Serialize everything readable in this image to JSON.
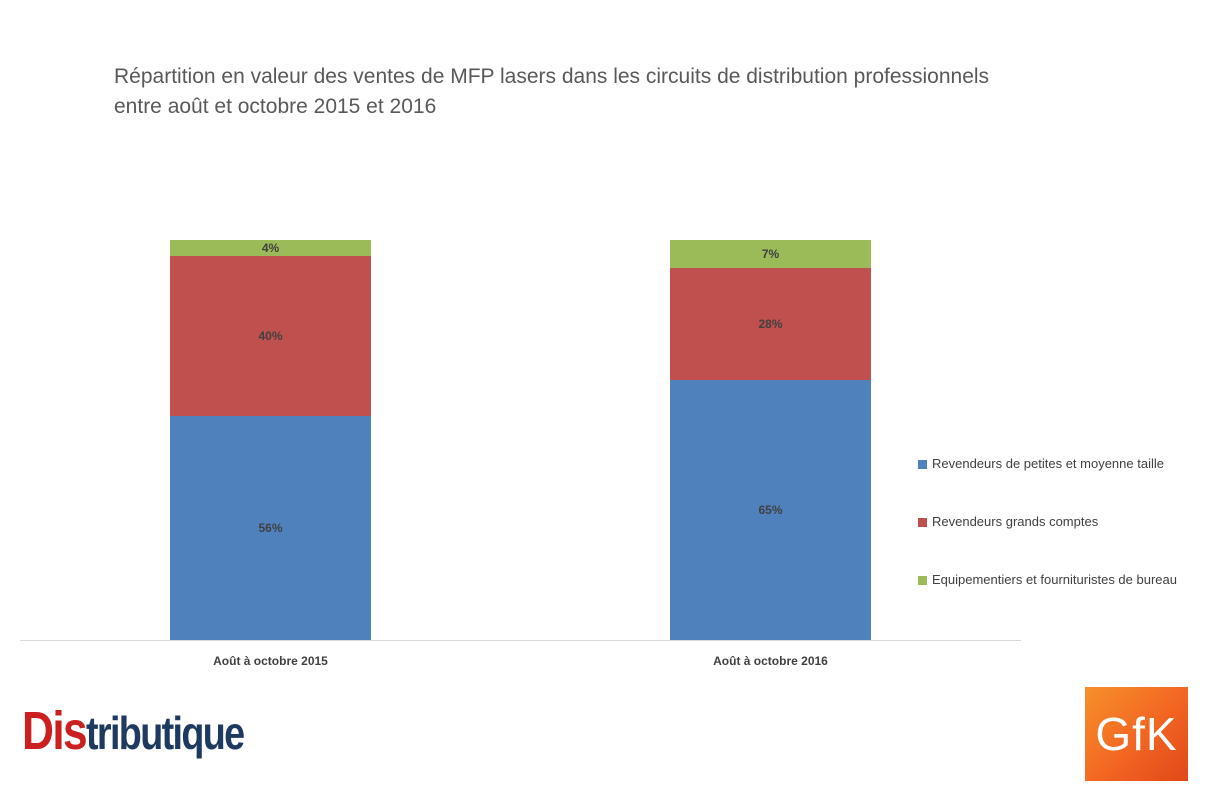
{
  "chart_data": {
    "type": "bar",
    "stacked": true,
    "title": "Répartition en valeur des ventes de MFP lasers dans les circuits de distribution professionnels entre août et octobre 2015 et 2016",
    "title_lines": [
      "Répartition en valeur des ventes de MFP lasers dans les circuits de distribution professionnels",
      "entre août et octobre 2015 et 2016"
    ],
    "categories": [
      "Août à octobre 2015",
      "Août à octobre 2016"
    ],
    "series": [
      {
        "name": "Revendeurs de petites et moyenne taille",
        "values": [
          56,
          65
        ],
        "color": "#4f81bd",
        "labels": [
          "56%",
          "65%"
        ]
      },
      {
        "name": "Revendeurs grands comptes",
        "values": [
          40,
          28
        ],
        "color": "#c0504d",
        "labels": [
          "40%",
          "28%"
        ]
      },
      {
        "name": "Equipementiers et fournituristes de bureau",
        "values": [
          4,
          7
        ],
        "color": "#9bbb59",
        "labels": [
          "4%",
          "7%"
        ]
      }
    ],
    "xlabel": "",
    "ylabel": "",
    "ylim": [
      0,
      100
    ],
    "grid": false,
    "legend_position": "right",
    "data_label_format": "percent"
  },
  "logos": {
    "left": {
      "name": "Distributique",
      "part1": "Dis",
      "part2": "tributique"
    },
    "right": {
      "name": "GfK",
      "text": "GfK"
    }
  }
}
